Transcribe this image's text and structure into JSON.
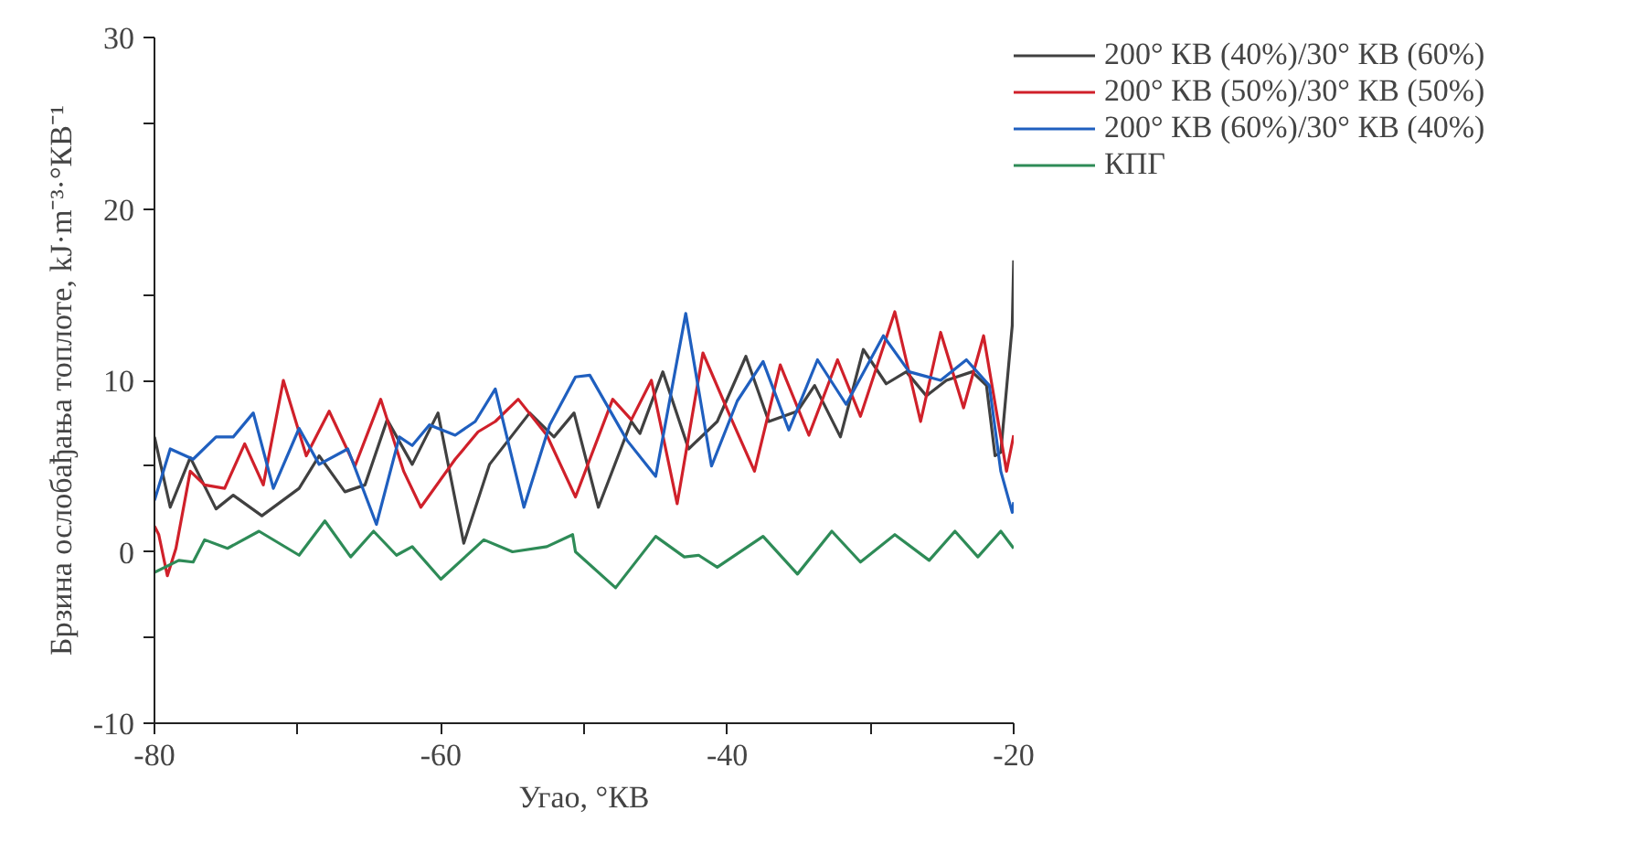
{
  "chart_data": {
    "type": "line",
    "xlabel": "Угао, °КВ",
    "ylabel": "Брзина ослобађања топлоте, kJ·m⁻³·°КВ⁻¹",
    "xlim": [
      -80,
      -20
    ],
    "ylim": [
      -10,
      30
    ],
    "xticks": [
      -80,
      {
        "value": -70,
        "label": null
      },
      -60,
      {
        "value": -50,
        "label": null
      },
      -40,
      {
        "value": -30,
        "label": null
      },
      -20
    ],
    "yticks": [
      -10,
      {
        "value": -5,
        "label": null
      },
      0,
      {
        "value": 5,
        "label": null
      },
      10,
      {
        "value": 15,
        "label": null
      },
      20,
      {
        "value": 25,
        "label": null
      },
      30
    ],
    "grid": false,
    "legend": "top right",
    "marker": "none",
    "line_style": "solid",
    "series": [
      {
        "name": "200° КВ (40%)/30° КВ (60%)",
        "color": "#404040",
        "x": [
          -80,
          -78.9,
          -77.5,
          -75.7,
          -74.5,
          -72.5,
          -69.9,
          -68.5,
          -66.7,
          -65.3,
          -63.75,
          -62,
          -60.2,
          -58.4,
          -56.6,
          -53.8,
          -52.1,
          -50.7,
          -49.0,
          -46.7,
          -46.1,
          -44.5,
          -42.7,
          -40.7,
          -38.7,
          -37.1,
          -35.1,
          -33.9,
          -32.1,
          -30.5,
          -28.9,
          -27.5,
          -26.1,
          -24.7,
          -22.9,
          -21.9,
          -21.3,
          -20.9,
          -20.1,
          -20
        ],
        "values": [
          6.7,
          2.6,
          5.5,
          2.5,
          3.3,
          2.1,
          3.7,
          5.6,
          3.5,
          3.9,
          7.7,
          5.1,
          8.1,
          0.5,
          5.1,
          8.1,
          6.7,
          8.1,
          2.6,
          7.6,
          6.9,
          10.5,
          6.0,
          7.6,
          11.4,
          7.6,
          8.2,
          9.7,
          6.7,
          11.8,
          9.8,
          10.5,
          9.1,
          10.0,
          10.5,
          9.7,
          5.6,
          5.8,
          13.2,
          17
        ]
      },
      {
        "name": "200° КВ (50%)/30° КВ (50%)",
        "color": "#d0202a",
        "x": [
          -80,
          -79.7,
          -79.1,
          -78.5,
          -77.5,
          -76.5,
          -75.1,
          -73.7,
          -72.4,
          -71,
          -69.4,
          -67.8,
          -66,
          -64.2,
          -62.6,
          -61.4,
          -59,
          -57.4,
          -56.2,
          -54.6,
          -52.6,
          -50.6,
          -48,
          -46.7,
          -45.3,
          -43.5,
          -41.7,
          -39.9,
          -38.1,
          -36.3,
          -34.3,
          -32.3,
          -30.7,
          -28.3,
          -26.5,
          -25.1,
          -23.5,
          -22.1,
          -20.5,
          -20
        ],
        "values": [
          1.5,
          1.0,
          -1.4,
          0.2,
          4.7,
          3.9,
          3.7,
          6.3,
          3.9,
          10.0,
          5.6,
          8.2,
          5.0,
          8.9,
          4.7,
          2.6,
          5.4,
          7.0,
          7.6,
          8.9,
          6.8,
          3.2,
          8.9,
          7.7,
          10.0,
          2.8,
          11.6,
          8.1,
          4.7,
          10.9,
          6.8,
          11.2,
          7.9,
          14.0,
          7.6,
          12.8,
          8.4,
          12.6,
          4.7,
          6.8
        ]
      },
      {
        "name": "200° КВ (60%)/30° КВ (40%)",
        "color": "#1f5fbf",
        "x": [
          -80,
          -78.9,
          -77.3,
          -75.7,
          -74.5,
          -73.1,
          -71.7,
          -69.9,
          -68.5,
          -66.5,
          -64.5,
          -62.9,
          -62,
          -60.8,
          -59,
          -57.6,
          -56.2,
          -54.2,
          -52.4,
          -50.6,
          -49.6,
          -47,
          -45,
          -42.9,
          -41.1,
          -39.3,
          -37.5,
          -35.7,
          -33.7,
          -31.7,
          -29.1,
          -27.3,
          -25.1,
          -23.3,
          -21.7,
          -20.9,
          -20.1,
          -20
        ],
        "values": [
          3.0,
          6.0,
          5.4,
          6.7,
          6.7,
          8.1,
          3.7,
          7.2,
          5.1,
          6.0,
          1.6,
          6.7,
          6.2,
          7.4,
          6.8,
          7.6,
          9.5,
          2.6,
          7.4,
          10.2,
          10.3,
          6.5,
          4.4,
          13.9,
          5.0,
          8.8,
          11.1,
          7.1,
          11.2,
          8.6,
          12.6,
          10.5,
          10.0,
          11.2,
          9.7,
          4.7,
          2.3,
          2.9
        ]
      },
      {
        "name": "КПГ",
        "color": "#2e8b57",
        "x": [
          -80,
          -78.3,
          -77.3,
          -76.5,
          -74.9,
          -72.7,
          -69.9,
          -68.1,
          -66.3,
          -64.7,
          -63.1,
          -62,
          -60,
          -57,
          -55,
          -52.6,
          -50.8,
          -50.6,
          -47.8,
          -45,
          -43,
          -42,
          -40.7,
          -37.5,
          -35.1,
          -32.7,
          -30.7,
          -28.3,
          -25.9,
          -24.1,
          -22.5,
          -20.9,
          -20
        ],
        "values": [
          -1.2,
          -0.5,
          -0.6,
          0.7,
          0.2,
          1.2,
          -0.2,
          1.8,
          -0.3,
          1.2,
          -0.2,
          0.3,
          -1.6,
          0.7,
          0.0,
          0.3,
          1.0,
          0.0,
          -2.1,
          0.9,
          -0.3,
          -0.2,
          -0.9,
          0.9,
          -1.3,
          1.2,
          -0.6,
          1.0,
          -0.5,
          1.2,
          -0.3,
          1.2,
          0.2
        ]
      }
    ]
  }
}
